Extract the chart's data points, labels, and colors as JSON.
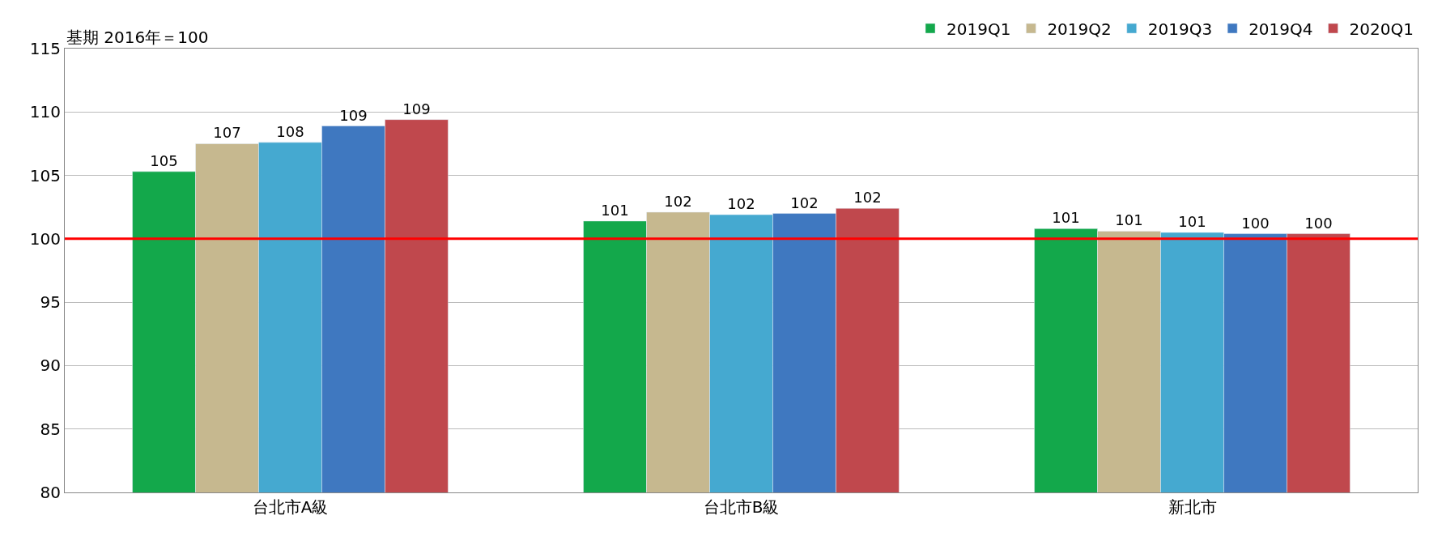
{
  "chart_data": {
    "type": "bar",
    "categories": [
      "台北市A級",
      "台北市B級",
      "新北市"
    ],
    "series": [
      {
        "name": "2019Q1",
        "color": "#13a84b",
        "values": [
          105.3,
          101.4,
          100.8
        ],
        "value_labels": [
          "105",
          "101",
          "101"
        ]
      },
      {
        "name": "2019Q2",
        "color": "#c6b88f",
        "values": [
          107.5,
          102.1,
          100.6
        ],
        "value_labels": [
          "107",
          "102",
          "101"
        ]
      },
      {
        "name": "2019Q3",
        "color": "#45a9d0",
        "values": [
          107.6,
          101.9,
          100.5
        ],
        "value_labels": [
          "108",
          "102",
          "101"
        ]
      },
      {
        "name": "2019Q4",
        "color": "#3f78c0",
        "values": [
          108.9,
          102.0,
          100.4
        ],
        "value_labels": [
          "109",
          "102",
          "100"
        ]
      },
      {
        "name": "2020Q1",
        "color": "#c0484d",
        "values": [
          109.4,
          102.4,
          100.4
        ],
        "value_labels": [
          "109",
          "102",
          "100"
        ]
      }
    ],
    "ylim": [
      80,
      115
    ],
    "yticks": [
      80,
      85,
      90,
      95,
      100,
      105,
      110,
      115
    ],
    "grid": "y",
    "legend": "top right",
    "ref_lines": [
      {
        "axis": "y",
        "value": 100,
        "color": "#ff0000"
      }
    ],
    "annotations": [
      "基期 2016年＝100"
    ]
  }
}
